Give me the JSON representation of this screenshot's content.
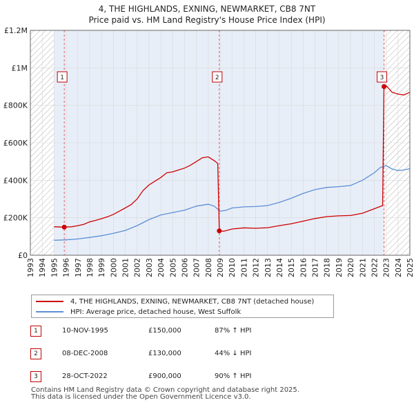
{
  "chart_data": {
    "type": "line",
    "title": "4, THE HIGHLANDS, EXNING, NEWMARKET, CB8 7NT",
    "subtitle": "Price paid vs. HM Land Registry's House Price Index (HPI)",
    "xlabel": "",
    "ylabel": "",
    "xlim": [
      1993,
      2025
    ],
    "ylim": [
      0,
      1200000
    ],
    "y_ticks": [
      {
        "value": 0,
        "label": "£0"
      },
      {
        "value": 200000,
        "label": "£200K"
      },
      {
        "value": 400000,
        "label": "£400K"
      },
      {
        "value": 600000,
        "label": "£600K"
      },
      {
        "value": 800000,
        "label": "£800K"
      },
      {
        "value": 1000000,
        "label": "£1M"
      },
      {
        "value": 1200000,
        "label": "£1.2M"
      }
    ],
    "x_ticks": [
      "1993",
      "1994",
      "1995",
      "1996",
      "1997",
      "1998",
      "1999",
      "2000",
      "2001",
      "2002",
      "2003",
      "2004",
      "2005",
      "2006",
      "2007",
      "2008",
      "2009",
      "2010",
      "2011",
      "2012",
      "2013",
      "2014",
      "2015",
      "2016",
      "2017",
      "2018",
      "2019",
      "2020",
      "2021",
      "2022",
      "2023",
      "2024",
      "2025"
    ],
    "hatched_ranges": [
      [
        1993,
        1995.0
      ],
      [
        2022.83,
        2025
      ]
    ],
    "shaded_ranges": [
      [
        1995.0,
        2022.83
      ]
    ],
    "series": [
      {
        "name": "4, THE HIGHLANDS, EXNING, NEWMARKET, CB8 7NT (detached house)",
        "color": "#cc0000",
        "points": [
          [
            1995.0,
            152000
          ],
          [
            1995.86,
            150000
          ],
          [
            1996.5,
            152000
          ],
          [
            1997.0,
            158000
          ],
          [
            1997.5,
            165000
          ],
          [
            1998.0,
            178000
          ],
          [
            1998.5,
            186000
          ],
          [
            1999.0,
            195000
          ],
          [
            1999.5,
            205000
          ],
          [
            2000.0,
            218000
          ],
          [
            2000.5,
            235000
          ],
          [
            2001.0,
            252000
          ],
          [
            2001.5,
            270000
          ],
          [
            2002.0,
            300000
          ],
          [
            2002.5,
            345000
          ],
          [
            2003.0,
            375000
          ],
          [
            2003.5,
            395000
          ],
          [
            2004.0,
            415000
          ],
          [
            2004.5,
            440000
          ],
          [
            2005.0,
            445000
          ],
          [
            2005.5,
            455000
          ],
          [
            2006.0,
            465000
          ],
          [
            2006.5,
            480000
          ],
          [
            2007.0,
            500000
          ],
          [
            2007.5,
            520000
          ],
          [
            2008.0,
            525000
          ],
          [
            2008.5,
            505000
          ],
          [
            2008.8,
            490000
          ],
          [
            2008.93,
            130000
          ],
          [
            2009.3,
            128000
          ],
          [
            2010.0,
            140000
          ],
          [
            2011.0,
            146000
          ],
          [
            2012.0,
            144000
          ],
          [
            2013.0,
            147000
          ],
          [
            2014.0,
            158000
          ],
          [
            2015.0,
            168000
          ],
          [
            2016.0,
            182000
          ],
          [
            2017.0,
            196000
          ],
          [
            2018.0,
            206000
          ],
          [
            2019.0,
            210000
          ],
          [
            2020.0,
            212000
          ],
          [
            2021.0,
            224000
          ],
          [
            2022.0,
            248000
          ],
          [
            2022.7,
            265000
          ],
          [
            2022.82,
            900000
          ],
          [
            2023.0,
            905000
          ],
          [
            2023.5,
            870000
          ],
          [
            2024.0,
            860000
          ],
          [
            2024.5,
            855000
          ],
          [
            2025.0,
            870000
          ]
        ]
      },
      {
        "name": "HPI: Average price, detached house, West Suffolk",
        "color": "#5b8fd4",
        "points": [
          [
            1995.0,
            80000
          ],
          [
            1996.0,
            82000
          ],
          [
            1997.0,
            87000
          ],
          [
            1998.0,
            95000
          ],
          [
            1999.0,
            104000
          ],
          [
            2000.0,
            117000
          ],
          [
            2001.0,
            132000
          ],
          [
            2002.0,
            158000
          ],
          [
            2003.0,
            190000
          ],
          [
            2004.0,
            215000
          ],
          [
            2005.0,
            228000
          ],
          [
            2006.0,
            240000
          ],
          [
            2007.0,
            262000
          ],
          [
            2008.0,
            272000
          ],
          [
            2008.5,
            262000
          ],
          [
            2009.0,
            235000
          ],
          [
            2009.5,
            240000
          ],
          [
            2010.0,
            252000
          ],
          [
            2011.0,
            258000
          ],
          [
            2012.0,
            260000
          ],
          [
            2013.0,
            265000
          ],
          [
            2014.0,
            282000
          ],
          [
            2015.0,
            304000
          ],
          [
            2016.0,
            330000
          ],
          [
            2017.0,
            350000
          ],
          [
            2018.0,
            362000
          ],
          [
            2019.0,
            366000
          ],
          [
            2020.0,
            372000
          ],
          [
            2021.0,
            400000
          ],
          [
            2022.0,
            440000
          ],
          [
            2022.5,
            468000
          ],
          [
            2023.0,
            478000
          ],
          [
            2023.5,
            460000
          ],
          [
            2024.0,
            452000
          ],
          [
            2024.5,
            455000
          ],
          [
            2025.0,
            462000
          ]
        ]
      }
    ],
    "sales": [
      {
        "label": "1",
        "year": 1995.86,
        "price": 150000,
        "date": "10-NOV-1995",
        "price_text": "£150,000",
        "hpi_text": "87% ↑ HPI"
      },
      {
        "label": "2",
        "year": 2008.93,
        "price": 130000,
        "date": "08-DEC-2008",
        "price_text": "£130,000",
        "hpi_text": "44% ↓ HPI"
      },
      {
        "label": "3",
        "year": 2022.82,
        "price": 900000,
        "date": "28-OCT-2022",
        "price_text": "£900,000",
        "hpi_text": "90% ↑ HPI"
      }
    ],
    "colors": {
      "price": "#cc0000",
      "hpi": "#5b8fd4",
      "shade": "#e8eef8",
      "grid": "#d8d8d8",
      "marker_line": "#e06060"
    }
  },
  "legend": {
    "property": "4, THE HIGHLANDS, EXNING, NEWMARKET, CB8 7NT (detached house)",
    "hpi": "HPI: Average price, detached house, West Suffolk"
  },
  "footer": {
    "line1": "Contains HM Land Registry data © Crown copyright and database right 2025.",
    "line2": "This data is licensed under the Open Government Licence v3.0."
  }
}
